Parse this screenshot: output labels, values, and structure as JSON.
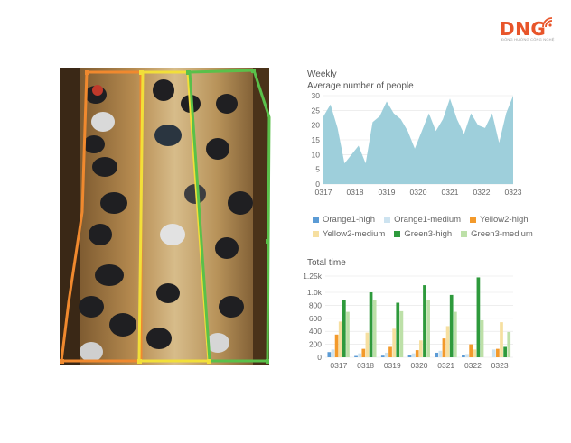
{
  "logo": {
    "text": "DNG",
    "subtitle": "ĐÔNG HƯỚNG CÔNG NGHỆ",
    "color": "#e8552a"
  },
  "weekly": {
    "title_line1": "Weekly",
    "title_line2": "Average number of people"
  },
  "total": {
    "title": "Total time"
  },
  "colors": {
    "area": "#9ecfdb",
    "orange1_high": "#5b9bd5",
    "orange1_medium": "#cde3f0",
    "yellow2_high": "#f39a2b",
    "yellow2_medium": "#f6dfa0",
    "green3_high": "#2e9a3c",
    "green3_medium": "#bde0a8",
    "zone_orange": "#f0892e",
    "zone_yellow": "#f2df39",
    "zone_green": "#5ac04a"
  },
  "legend": [
    {
      "label": "Orange1-high",
      "color_key": "orange1_high"
    },
    {
      "label": "Orange1-medium",
      "color_key": "orange1_medium"
    },
    {
      "label": "Yellow2-high",
      "color_key": "yellow2_high"
    },
    {
      "label": "Yellow2-medium",
      "color_key": "yellow2_medium"
    },
    {
      "label": "Green3-high",
      "color_key": "green3_high"
    },
    {
      "label": "Green3-medium",
      "color_key": "green3_medium"
    }
  ],
  "chart_data": [
    {
      "type": "area",
      "title": "Weekly",
      "subtitle": "Average number of people",
      "x_labels": [
        "0317",
        "0318",
        "0319",
        "0320",
        "0321",
        "0322",
        "0323"
      ],
      "values": [
        23,
        27,
        19,
        7,
        10,
        13,
        7,
        21,
        23,
        28,
        24,
        22,
        18,
        12,
        18,
        24,
        18,
        22,
        29,
        22,
        17,
        24,
        20,
        19,
        24,
        14,
        24,
        30
      ],
      "ylim": [
        0,
        30
      ],
      "yticks": [
        0,
        5,
        10,
        15,
        20,
        25,
        30
      ],
      "grid": true
    },
    {
      "type": "bar",
      "title": "Total time",
      "categories": [
        "0317",
        "0318",
        "0319",
        "0320",
        "0321",
        "0322",
        "0323"
      ],
      "ylim": [
        0,
        1250
      ],
      "ytick_labels": [
        "0",
        "200",
        "400",
        "600",
        "800",
        "1.0k",
        "1.25k"
      ],
      "yticks": [
        0,
        200,
        400,
        600,
        800,
        1000,
        1250
      ],
      "grid": true,
      "series": [
        {
          "name": "Orange1-high",
          "color_key": "orange1_high",
          "values": [
            80,
            20,
            25,
            40,
            70,
            30,
            0
          ]
        },
        {
          "name": "Orange1-medium",
          "color_key": "orange1_medium",
          "values": [
            120,
            60,
            70,
            60,
            100,
            50,
            120
          ]
        },
        {
          "name": "Yellow2-high",
          "color_key": "yellow2_high",
          "values": [
            350,
            130,
            160,
            110,
            290,
            200,
            130
          ]
        },
        {
          "name": "Yellow2-medium",
          "color_key": "yellow2_medium",
          "values": [
            550,
            380,
            440,
            260,
            480,
            120,
            540
          ]
        },
        {
          "name": "Green3-high",
          "color_key": "green3_high",
          "values": [
            880,
            1000,
            840,
            1110,
            960,
            1230,
            160
          ]
        },
        {
          "name": "Green3-medium",
          "color_key": "green3_medium",
          "values": [
            700,
            880,
            710,
            880,
            700,
            570,
            390
          ]
        }
      ]
    }
  ]
}
